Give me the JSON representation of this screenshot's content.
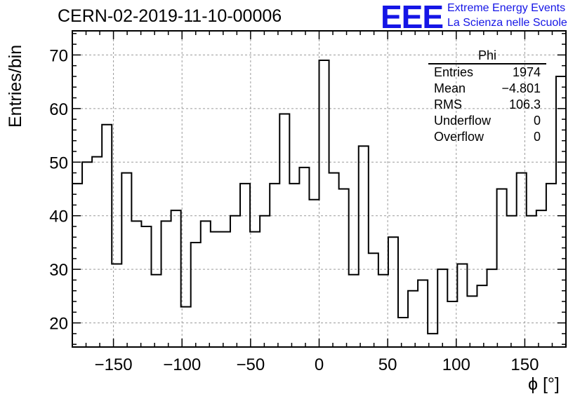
{
  "header": {
    "run_title": "CERN-02-2019-11-10-00006"
  },
  "logo": {
    "mark": "EEE",
    "line1": "Extreme Energy Events",
    "line2": "La Scienza nelle Scuole",
    "color": "#1515e6"
  },
  "stats_box": {
    "title": "Phi",
    "rows": [
      {
        "label": "Entries",
        "value": "1974"
      },
      {
        "label": "Mean",
        "value": "−4.801"
      },
      {
        "label": "RMS",
        "value": "106.3"
      },
      {
        "label": "Underflow",
        "value": "0"
      },
      {
        "label": "Overflow",
        "value": "0"
      }
    ]
  },
  "chart_data": {
    "type": "bar",
    "style": "step-histogram",
    "title": "CERN-02-2019-11-10-00006",
    "xlabel": "ϕ [°]",
    "ylabel": "Entries/bin",
    "xlim": [
      -180,
      180
    ],
    "ylim": [
      15.5,
      74.5
    ],
    "bin_width": 7.2,
    "grid": true,
    "xticks": [
      -150,
      -100,
      -50,
      0,
      50,
      100,
      150
    ],
    "xtick_labels": [
      "−150",
      "−100",
      "−50",
      "0",
      "50",
      "100",
      "150"
    ],
    "yticks": [
      20,
      30,
      40,
      50,
      60,
      70
    ],
    "ytick_labels": [
      "20",
      "30",
      "40",
      "50",
      "60",
      "70"
    ],
    "values": [
      46,
      50,
      51,
      57,
      31,
      48,
      39,
      38,
      29,
      39,
      41,
      23,
      35,
      39,
      37,
      37,
      40,
      46,
      37,
      40,
      46,
      59,
      46,
      49,
      43,
      69,
      48,
      45,
      29,
      53,
      33,
      29,
      36,
      21,
      26,
      28,
      18,
      30,
      24,
      31,
      25,
      27,
      30,
      45,
      40,
      48,
      40,
      41,
      46,
      66
    ]
  }
}
